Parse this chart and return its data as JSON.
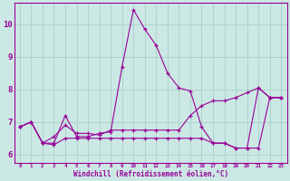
{
  "xlabel": "Windchill (Refroidissement éolien,°C)",
  "background_color": "#cce8e4",
  "grid_color": "#aad4cc",
  "line_color": "#990099",
  "marker_color": "#990099",
  "xlim": [
    -0.5,
    23.5
  ],
  "ylim": [
    5.75,
    10.65
  ],
  "xticks": [
    0,
    1,
    2,
    3,
    4,
    5,
    6,
    7,
    8,
    9,
    10,
    11,
    12,
    13,
    14,
    15,
    16,
    17,
    18,
    19,
    20,
    21,
    22,
    23
  ],
  "yticks": [
    6,
    7,
    8,
    9,
    10
  ],
  "series": [
    [
      6.85,
      7.0,
      6.35,
      6.35,
      7.2,
      6.55,
      6.55,
      6.65,
      6.7,
      8.7,
      10.45,
      9.85,
      9.35,
      8.5,
      8.05,
      7.95,
      6.85,
      6.35,
      6.35,
      6.2,
      6.2,
      8.05,
      7.75,
      7.75
    ],
    [
      6.85,
      7.0,
      6.35,
      6.55,
      6.9,
      6.65,
      6.65,
      6.6,
      6.75,
      6.75,
      6.75,
      6.75,
      6.75,
      6.75,
      6.75,
      7.2,
      7.5,
      7.65,
      7.65,
      7.75,
      7.9,
      8.05,
      7.75,
      7.75
    ],
    [
      6.85,
      7.0,
      6.35,
      6.3,
      6.5,
      6.5,
      6.5,
      6.5,
      6.5,
      6.5,
      6.5,
      6.5,
      6.5,
      6.5,
      6.5,
      6.5,
      6.5,
      6.35,
      6.35,
      6.2,
      6.2,
      6.2,
      7.75,
      7.75
    ]
  ]
}
